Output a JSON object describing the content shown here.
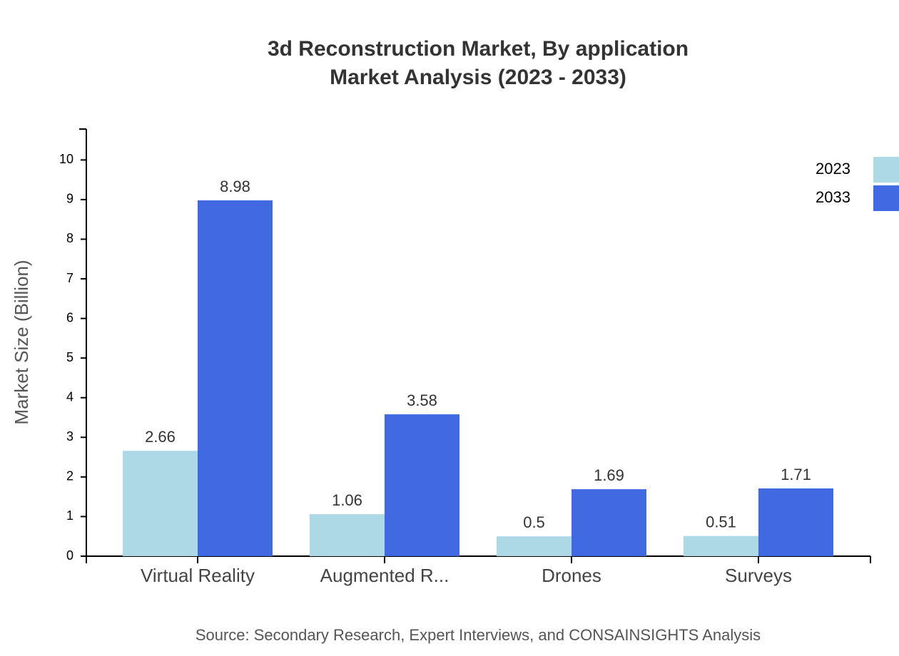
{
  "chart_data": {
    "type": "bar",
    "title": "3d Reconstruction Market, By application",
    "subtitle": "Market Analysis (2023 - 2033)",
    "y_label": "Market Size (Billion)",
    "source": "Source: Secondary Research, Expert Interviews, and CONSAINSIGHTS Analysis",
    "categories": [
      "Virtual Reality",
      "Augmented R...",
      "Drones",
      "Surveys"
    ],
    "series": [
      {
        "name": "2023",
        "color": "#add8e6",
        "values": [
          2.66,
          1.06,
          0.5,
          0.51
        ]
      },
      {
        "name": "2033",
        "color": "#4169e1",
        "values": [
          8.98,
          3.58,
          1.69,
          1.71
        ]
      }
    ],
    "ylim": [
      0,
      10.78
    ],
    "yticks": [
      0,
      1,
      2,
      3,
      4,
      5,
      6,
      7,
      8,
      9,
      10
    ],
    "legend": "top-right"
  }
}
